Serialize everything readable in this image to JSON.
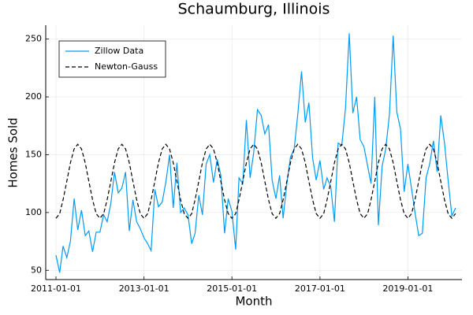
{
  "chart_data": {
    "type": "line",
    "title": "Schaumburg, Illinois",
    "x_label": "Month",
    "y_label": "Homes Sold",
    "x": [
      "2011-01-01",
      "2011-02-01",
      "2011-03-01",
      "2011-04-01",
      "2011-05-01",
      "2011-06-01",
      "2011-07-01",
      "2011-08-01",
      "2011-09-01",
      "2011-10-01",
      "2011-11-01",
      "2011-12-01",
      "2012-01-01",
      "2012-02-01",
      "2012-03-01",
      "2012-04-01",
      "2012-05-01",
      "2012-06-01",
      "2012-07-01",
      "2012-08-01",
      "2012-09-01",
      "2012-10-01",
      "2012-11-01",
      "2012-12-01",
      "2013-01-01",
      "2013-02-01",
      "2013-03-01",
      "2013-04-01",
      "2013-05-01",
      "2013-06-01",
      "2013-07-01",
      "2013-08-01",
      "2013-09-01",
      "2013-10-01",
      "2013-11-01",
      "2013-12-01",
      "2014-01-01",
      "2014-02-01",
      "2014-03-01",
      "2014-04-01",
      "2014-05-01",
      "2014-06-01",
      "2014-07-01",
      "2014-08-01",
      "2014-09-01",
      "2014-10-01",
      "2014-11-01",
      "2014-12-01",
      "2015-01-01",
      "2015-02-01",
      "2015-03-01",
      "2015-04-01",
      "2015-05-01",
      "2015-06-01",
      "2015-07-01",
      "2015-08-01",
      "2015-09-01",
      "2015-10-01",
      "2015-11-01",
      "2015-12-01",
      "2016-01-01",
      "2016-02-01",
      "2016-03-01",
      "2016-04-01",
      "2016-05-01",
      "2016-06-01",
      "2016-07-01",
      "2016-08-01",
      "2016-09-01",
      "2016-10-01",
      "2016-11-01",
      "2016-12-01",
      "2017-01-01",
      "2017-02-01",
      "2017-03-01",
      "2017-04-01",
      "2017-05-01",
      "2017-06-01",
      "2017-07-01",
      "2017-08-01",
      "2017-09-01",
      "2017-10-01",
      "2017-11-01",
      "2017-12-01",
      "2018-01-01",
      "2018-02-01",
      "2018-03-01",
      "2018-04-01",
      "2018-05-01",
      "2018-06-01",
      "2018-07-01",
      "2018-08-01",
      "2018-09-01",
      "2018-10-01",
      "2018-11-01",
      "2018-12-01",
      "2019-01-01",
      "2019-02-01",
      "2019-03-01",
      "2019-04-01",
      "2019-05-01",
      "2019-06-01",
      "2019-07-01",
      "2019-08-01",
      "2019-09-01",
      "2019-10-01",
      "2019-11-01",
      "2019-12-01",
      "2020-01-01",
      "2020-02-01"
    ],
    "series": [
      {
        "name": "Zillow Data",
        "color": "#009af9",
        "line_style": "solid",
        "values": [
          63,
          48,
          71,
          61,
          75,
          112,
          85,
          102,
          80,
          84,
          66,
          83,
          83,
          98,
          92,
          108,
          135,
          117,
          121,
          135,
          84,
          111,
          92,
          86,
          78,
          73,
          67,
          120,
          105,
          109,
          126,
          150,
          104,
          143,
          100,
          104,
          98,
          73,
          82,
          115,
          98,
          142,
          150,
          126,
          146,
          132,
          82,
          112,
          101,
          68,
          130,
          125,
          180,
          130,
          152,
          189,
          184,
          168,
          176,
          128,
          112,
          132,
          95,
          125,
          148,
          155,
          185,
          222,
          178,
          195,
          147,
          128,
          145,
          120,
          130,
          122,
          92,
          160,
          158,
          190,
          255,
          186,
          200,
          163,
          157,
          140,
          125,
          200,
          89,
          140,
          155,
          185,
          253,
          187,
          172,
          118,
          142,
          120,
          100,
          80,
          82,
          130,
          142,
          162,
          135,
          184,
          160,
          128,
          97,
          104
        ]
      },
      {
        "name": "Newton-Gauss",
        "color": "#000000",
        "line_style": "dashed",
        "values": [
          95,
          99,
          111,
          127,
          143,
          155,
          159,
          155,
          143,
          127,
          111,
          99,
          95,
          99,
          111,
          127,
          143,
          155,
          159,
          155,
          143,
          127,
          111,
          99,
          95,
          99,
          111,
          127,
          143,
          155,
          159,
          155,
          143,
          127,
          111,
          99,
          95,
          99,
          111,
          127,
          143,
          155,
          159,
          155,
          143,
          127,
          111,
          99,
          95,
          99,
          111,
          127,
          143,
          155,
          159,
          155,
          143,
          127,
          111,
          99,
          95,
          99,
          111,
          127,
          143,
          155,
          159,
          155,
          143,
          127,
          111,
          99,
          95,
          99,
          111,
          127,
          143,
          155,
          159,
          155,
          143,
          127,
          111,
          99,
          95,
          99,
          111,
          127,
          143,
          155,
          159,
          155,
          143,
          127,
          111,
          99,
          95,
          99,
          111,
          127,
          143,
          155,
          159,
          155,
          143,
          127,
          111,
          99,
          95,
          99
        ]
      }
    ],
    "xlim": [
      "2010-10-08",
      "2020-03-25"
    ],
    "xticks": [
      "2011-01-01",
      "2013-01-01",
      "2015-01-01",
      "2017-01-01",
      "2019-01-01"
    ],
    "ylim": [
      42,
      262
    ],
    "yticks": [
      50,
      100,
      150,
      200,
      250
    ],
    "grid": true,
    "legend": "top-left"
  }
}
